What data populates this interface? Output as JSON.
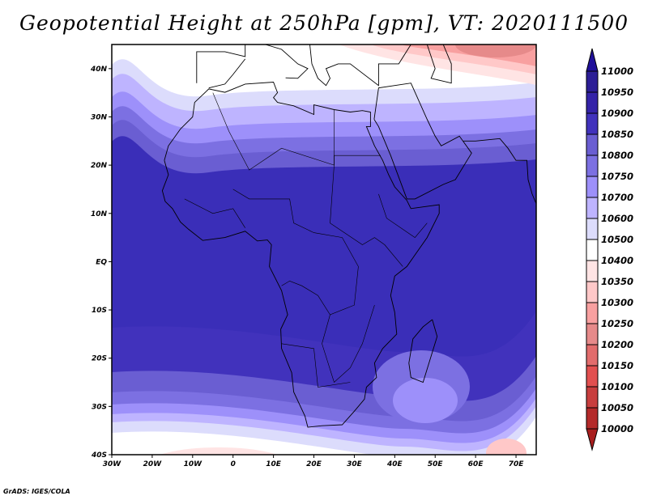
{
  "title": "Geopotential Height at 250hPa [gpm], VT: 2020111500",
  "credit": "GrADS: IGES/COLA",
  "map": {
    "lon_range": [
      -30,
      75
    ],
    "lat_range": [
      -40,
      45
    ],
    "lon_ticks": [
      "30W",
      "20W",
      "10W",
      "0",
      "10E",
      "20E",
      "30E",
      "40E",
      "50E",
      "60E",
      "70E"
    ],
    "lat_ticks": [
      "40N",
      "30N",
      "20N",
      "10N",
      "EQ",
      "10S",
      "20S",
      "30S",
      "40S"
    ]
  },
  "colorbar": {
    "labels": [
      "11000",
      "10950",
      "10900",
      "10850",
      "10800",
      "10750",
      "10700",
      "10600",
      "10500",
      "10400",
      "10350",
      "10300",
      "10250",
      "10200",
      "10150",
      "10100",
      "10050",
      "10000"
    ],
    "colors": [
      "#2c1e96",
      "#3423a8",
      "#4132bc",
      "#6a5ed2",
      "#7c70e2",
      "#9d90fa",
      "#beb4ff",
      "#dcdcfc",
      "#ffffff",
      "#ffe4e4",
      "#ffc8c8",
      "#f8a0a0",
      "#e68a8a",
      "#e26c6c",
      "#e25050",
      "#c83e3e",
      "#b42a2a"
    ],
    "above_color": "#20109a",
    "below_color": "#a81e1e"
  }
}
